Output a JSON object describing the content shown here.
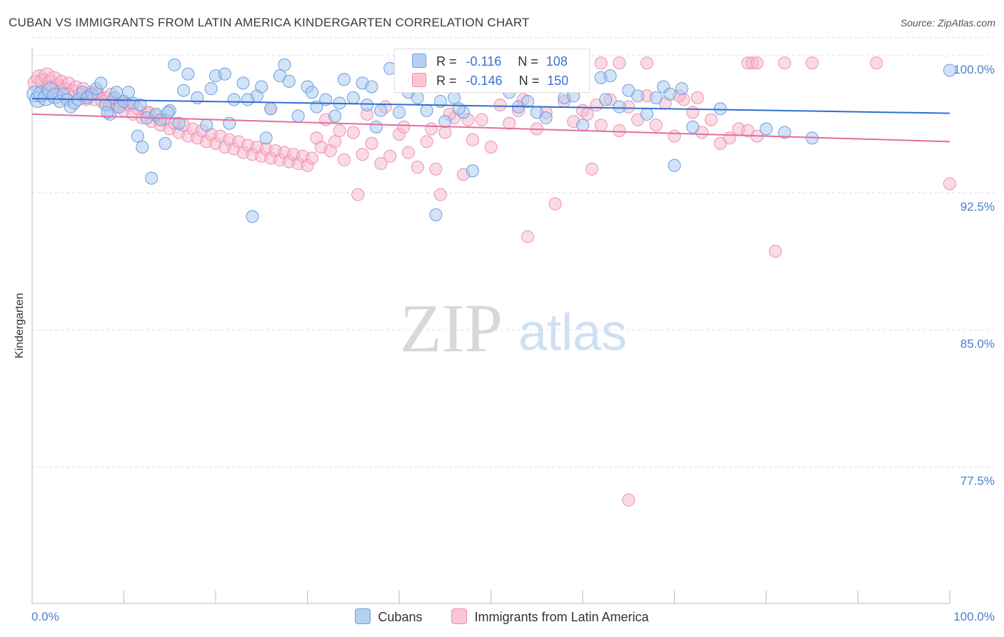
{
  "title": "CUBAN VS IMMIGRANTS FROM LATIN AMERICA KINDERGARTEN CORRELATION CHART",
  "source": "Source: ZipAtlas.com",
  "watermark": {
    "zip": "ZIP",
    "atlas": "atlas"
  },
  "legend_box": {
    "series1": {
      "r_label": "R =",
      "r_value": "-0.116",
      "n_label": "N =",
      "n_value": "108"
    },
    "series2": {
      "r_label": "R =",
      "r_value": "-0.146",
      "n_label": "N =",
      "n_value": "150"
    }
  },
  "colors": {
    "blue_fill": "#a8c8f0",
    "blue_stroke": "#6a9de0",
    "blue_line": "#2f6fcf",
    "pink_fill": "#f6b8cc",
    "pink_stroke": "#ee8fb0",
    "pink_line": "#e0709a",
    "tick_text": "#4a7fd0",
    "grid": "#dddddd"
  },
  "chart_data": {
    "type": "scatter",
    "title": "CUBAN VS IMMIGRANTS FROM LATIN AMERICA KINDERGARTEN CORRELATION CHART",
    "xlabel": "",
    "ylabel": "Kindergarten",
    "xlim": [
      0,
      100
    ],
    "ylim": [
      70,
      101
    ],
    "x_tick_labels": [
      "0.0%",
      "100.0%"
    ],
    "y_ticks": [
      {
        "value": 100.0,
        "label": "100.0%"
      },
      {
        "value": 92.5,
        "label": "92.5%"
      },
      {
        "value": 85.0,
        "label": "85.0%"
      },
      {
        "value": 77.5,
        "label": "77.5%"
      }
    ],
    "series": [
      {
        "name": "Cubans",
        "color": "#a8c8f0",
        "trend": {
          "x": [
            0,
            100
          ],
          "y": [
            97.65,
            96.85
          ]
        },
        "points": [
          [
            0.3,
            97.9
          ],
          [
            0.6,
            97.6
          ],
          [
            1.0,
            97.9
          ],
          [
            1.5,
            97.7
          ],
          [
            2.0,
            98.1
          ],
          [
            2.5,
            97.8
          ],
          [
            3.0,
            97.5
          ],
          [
            3.4,
            97.9
          ],
          [
            3.8,
            97.6
          ],
          [
            4.2,
            97.2
          ],
          [
            4.6,
            97.4
          ],
          [
            5.0,
            97.6
          ],
          [
            5.5,
            98.0
          ],
          [
            6.0,
            97.7
          ],
          [
            6.5,
            97.9
          ],
          [
            7.0,
            98.2
          ],
          [
            7.5,
            98.5
          ],
          [
            8.0,
            97.3
          ],
          [
            8.5,
            96.8
          ],
          [
            9.0,
            97.7
          ],
          [
            9.5,
            97.2
          ],
          [
            10.0,
            97.5
          ],
          [
            10.5,
            98.0
          ],
          [
            11.0,
            97.4
          ],
          [
            11.5,
            95.6
          ],
          [
            12.0,
            95.0
          ],
          [
            12.5,
            96.6
          ],
          [
            13.0,
            93.3
          ],
          [
            13.5,
            96.8
          ],
          [
            14.0,
            96.5
          ],
          [
            14.5,
            95.2
          ],
          [
            15.0,
            97.0
          ],
          [
            15.5,
            99.5
          ],
          [
            16.0,
            96.3
          ],
          [
            17.0,
            99.0
          ],
          [
            18.0,
            97.7
          ],
          [
            19.0,
            96.2
          ],
          [
            20.0,
            98.9
          ],
          [
            21.0,
            99.0
          ],
          [
            22.0,
            97.6
          ],
          [
            23.0,
            98.5
          ],
          [
            24.0,
            91.2
          ],
          [
            24.5,
            97.8
          ],
          [
            25.0,
            98.3
          ],
          [
            26.0,
            97.1
          ],
          [
            27.0,
            98.9
          ],
          [
            28.0,
            98.6
          ],
          [
            29.0,
            96.7
          ],
          [
            30.0,
            98.3
          ],
          [
            31.0,
            97.2
          ],
          [
            32.0,
            97.6
          ],
          [
            33.0,
            96.7
          ],
          [
            34.0,
            98.7
          ],
          [
            35.0,
            97.7
          ],
          [
            36.0,
            98.5
          ],
          [
            37.0,
            98.3
          ],
          [
            38.0,
            97.0
          ],
          [
            40.0,
            96.9
          ],
          [
            41.0,
            98.0
          ],
          [
            42.0,
            97.7
          ],
          [
            43.0,
            97.0
          ],
          [
            44.0,
            91.3
          ],
          [
            45.0,
            96.4
          ],
          [
            46.0,
            97.7
          ],
          [
            47.0,
            96.9
          ],
          [
            48.0,
            93.7
          ],
          [
            50.0,
            99.2
          ],
          [
            52.0,
            98.0
          ],
          [
            53.0,
            97.2
          ],
          [
            55.0,
            96.9
          ],
          [
            56.0,
            96.6
          ],
          [
            58.0,
            97.7
          ],
          [
            60.0,
            96.2
          ],
          [
            62.0,
            98.8
          ],
          [
            63.0,
            98.9
          ],
          [
            64.0,
            97.2
          ],
          [
            65.0,
            98.1
          ],
          [
            66.0,
            97.8
          ],
          [
            67.0,
            96.8
          ],
          [
            68.0,
            97.7
          ],
          [
            68.8,
            98.3
          ],
          [
            69.5,
            97.9
          ],
          [
            70.0,
            94.0
          ],
          [
            70.8,
            98.2
          ],
          [
            72.0,
            96.1
          ],
          [
            75.0,
            97.1
          ],
          [
            80.0,
            96.0
          ],
          [
            82.0,
            95.8
          ],
          [
            85.0,
            95.5
          ],
          [
            23.5,
            97.6
          ],
          [
            36.5,
            97.3
          ],
          [
            25.5,
            95.5
          ],
          [
            30.5,
            98.0
          ],
          [
            33.5,
            97.4
          ],
          [
            21.5,
            96.3
          ],
          [
            19.5,
            98.2
          ],
          [
            37.5,
            96.1
          ],
          [
            44.5,
            97.5
          ],
          [
            62.5,
            97.6
          ],
          [
            11.8,
            97.3
          ],
          [
            14.8,
            96.9
          ],
          [
            9.2,
            98.0
          ],
          [
            16.5,
            98.1
          ],
          [
            27.5,
            99.5
          ],
          [
            39.0,
            99.3
          ],
          [
            8.2,
            96.9
          ],
          [
            54.0,
            97.5
          ],
          [
            59.0,
            97.8
          ],
          [
            46.5,
            97.1
          ],
          [
            100.0,
            99.2
          ]
        ]
      },
      {
        "name": "Immigrants from Latin America",
        "color": "#f6b8cc",
        "trend": {
          "x": [
            0,
            100
          ],
          "y": [
            96.8,
            95.3
          ]
        },
        "points": [
          [
            0.4,
            98.5
          ],
          [
            0.8,
            98.8
          ],
          [
            1.2,
            98.6
          ],
          [
            1.6,
            98.9
          ],
          [
            2.0,
            98.5
          ],
          [
            2.4,
            98.7
          ],
          [
            2.8,
            98.3
          ],
          [
            3.2,
            98.6
          ],
          [
            3.6,
            98.2
          ],
          [
            4.0,
            98.5
          ],
          [
            4.4,
            98.1
          ],
          [
            4.8,
            98.3
          ],
          [
            5.2,
            97.9
          ],
          [
            5.6,
            98.2
          ],
          [
            6.0,
            97.8
          ],
          [
            6.4,
            98.0
          ],
          [
            6.8,
            97.6
          ],
          [
            7.2,
            97.9
          ],
          [
            7.6,
            97.5
          ],
          [
            8.0,
            97.7
          ],
          [
            8.4,
            97.3
          ],
          [
            8.8,
            97.6
          ],
          [
            9.2,
            97.2
          ],
          [
            9.6,
            97.4
          ],
          [
            10.0,
            97.0
          ],
          [
            10.5,
            97.3
          ],
          [
            11.0,
            96.8
          ],
          [
            11.5,
            97.1
          ],
          [
            12.0,
            96.6
          ],
          [
            12.5,
            96.9
          ],
          [
            13.0,
            96.4
          ],
          [
            13.5,
            96.7
          ],
          [
            14.0,
            96.2
          ],
          [
            14.5,
            96.5
          ],
          [
            15.0,
            96.0
          ],
          [
            15.5,
            96.3
          ],
          [
            16.0,
            95.8
          ],
          [
            16.5,
            96.2
          ],
          [
            17.0,
            95.6
          ],
          [
            17.5,
            96.0
          ],
          [
            18.0,
            95.5
          ],
          [
            18.5,
            95.9
          ],
          [
            19.0,
            95.3
          ],
          [
            19.5,
            95.7
          ],
          [
            20.0,
            95.2
          ],
          [
            20.5,
            95.6
          ],
          [
            21.0,
            95.0
          ],
          [
            21.5,
            95.4
          ],
          [
            22.0,
            94.9
          ],
          [
            22.5,
            95.3
          ],
          [
            23.0,
            94.7
          ],
          [
            23.5,
            95.1
          ],
          [
            24.0,
            94.6
          ],
          [
            24.5,
            95.0
          ],
          [
            25.0,
            94.5
          ],
          [
            25.5,
            94.9
          ],
          [
            26.0,
            94.4
          ],
          [
            26.5,
            94.8
          ],
          [
            27.0,
            94.3
          ],
          [
            27.5,
            94.7
          ],
          [
            28.0,
            94.2
          ],
          [
            28.5,
            94.6
          ],
          [
            29.0,
            94.1
          ],
          [
            29.5,
            94.5
          ],
          [
            30.0,
            94.0
          ],
          [
            30.5,
            94.4
          ],
          [
            31.0,
            95.5
          ],
          [
            31.5,
            95.0
          ],
          [
            32.0,
            96.5
          ],
          [
            32.5,
            94.8
          ],
          [
            33.0,
            95.3
          ],
          [
            34.0,
            94.3
          ],
          [
            35.0,
            95.8
          ],
          [
            35.5,
            92.4
          ],
          [
            36.0,
            94.6
          ],
          [
            37.0,
            95.2
          ],
          [
            38.0,
            94.1
          ],
          [
            39.0,
            94.5
          ],
          [
            40.0,
            95.7
          ],
          [
            41.0,
            94.7
          ],
          [
            42.0,
            93.9
          ],
          [
            43.0,
            95.3
          ],
          [
            44.0,
            93.8
          ],
          [
            44.5,
            92.4
          ],
          [
            45.0,
            95.8
          ],
          [
            46.0,
            96.6
          ],
          [
            47.0,
            93.5
          ],
          [
            48.0,
            95.4
          ],
          [
            49.0,
            96.5
          ],
          [
            50.0,
            95.0
          ],
          [
            51.0,
            97.3
          ],
          [
            52.0,
            96.3
          ],
          [
            53.0,
            97.0
          ],
          [
            54.0,
            90.1
          ],
          [
            55.0,
            96.0
          ],
          [
            56.0,
            96.9
          ],
          [
            57.0,
            91.9
          ],
          [
            58.0,
            97.5
          ],
          [
            59.0,
            96.4
          ],
          [
            60.0,
            97.0
          ],
          [
            61.0,
            93.8
          ],
          [
            62.0,
            96.2
          ],
          [
            63.0,
            97.6
          ],
          [
            64.0,
            95.9
          ],
          [
            65.0,
            97.2
          ],
          [
            66.0,
            96.5
          ],
          [
            67.0,
            97.8
          ],
          [
            68.0,
            96.2
          ],
          [
            69.0,
            97.4
          ],
          [
            70.0,
            95.6
          ],
          [
            71.0,
            97.6
          ],
          [
            72.0,
            96.9
          ],
          [
            73.0,
            95.8
          ],
          [
            74.0,
            96.5
          ],
          [
            75.0,
            95.2
          ],
          [
            76.0,
            95.5
          ],
          [
            77.0,
            96.0
          ],
          [
            78.0,
            95.9
          ],
          [
            79.0,
            95.6
          ],
          [
            81.0,
            89.3
          ],
          [
            82.0,
            99.6
          ],
          [
            85.0,
            99.6
          ],
          [
            92.0,
            99.6
          ],
          [
            100.0,
            93.0
          ],
          [
            62.0,
            99.6
          ],
          [
            64.0,
            99.6
          ],
          [
            67.0,
            99.6
          ],
          [
            78.0,
            99.6
          ],
          [
            78.5,
            99.6
          ],
          [
            79.0,
            99.6
          ],
          [
            65.0,
            75.7
          ],
          [
            56.0,
            99.0
          ],
          [
            49.0,
            98.7
          ],
          [
            61.5,
            97.3
          ],
          [
            70.5,
            97.8
          ],
          [
            60.5,
            96.8
          ],
          [
            53.5,
            97.6
          ],
          [
            47.5,
            96.5
          ],
          [
            36.5,
            96.8
          ],
          [
            26.0,
            97.1
          ],
          [
            12.7,
            96.9
          ],
          [
            10.3,
            97.4
          ],
          [
            8.6,
            97.9
          ],
          [
            7.1,
            98.0
          ],
          [
            5.9,
            97.6
          ],
          [
            3.9,
            97.9
          ],
          [
            1.8,
            98.2
          ],
          [
            38.5,
            97.2
          ],
          [
            40.5,
            96.1
          ],
          [
            43.5,
            96.0
          ],
          [
            72.5,
            97.7
          ],
          [
            45.5,
            96.8
          ],
          [
            33.5,
            95.9
          ]
        ]
      }
    ]
  },
  "bottom_legend": [
    "Cubans",
    "Immigrants from Latin America"
  ]
}
